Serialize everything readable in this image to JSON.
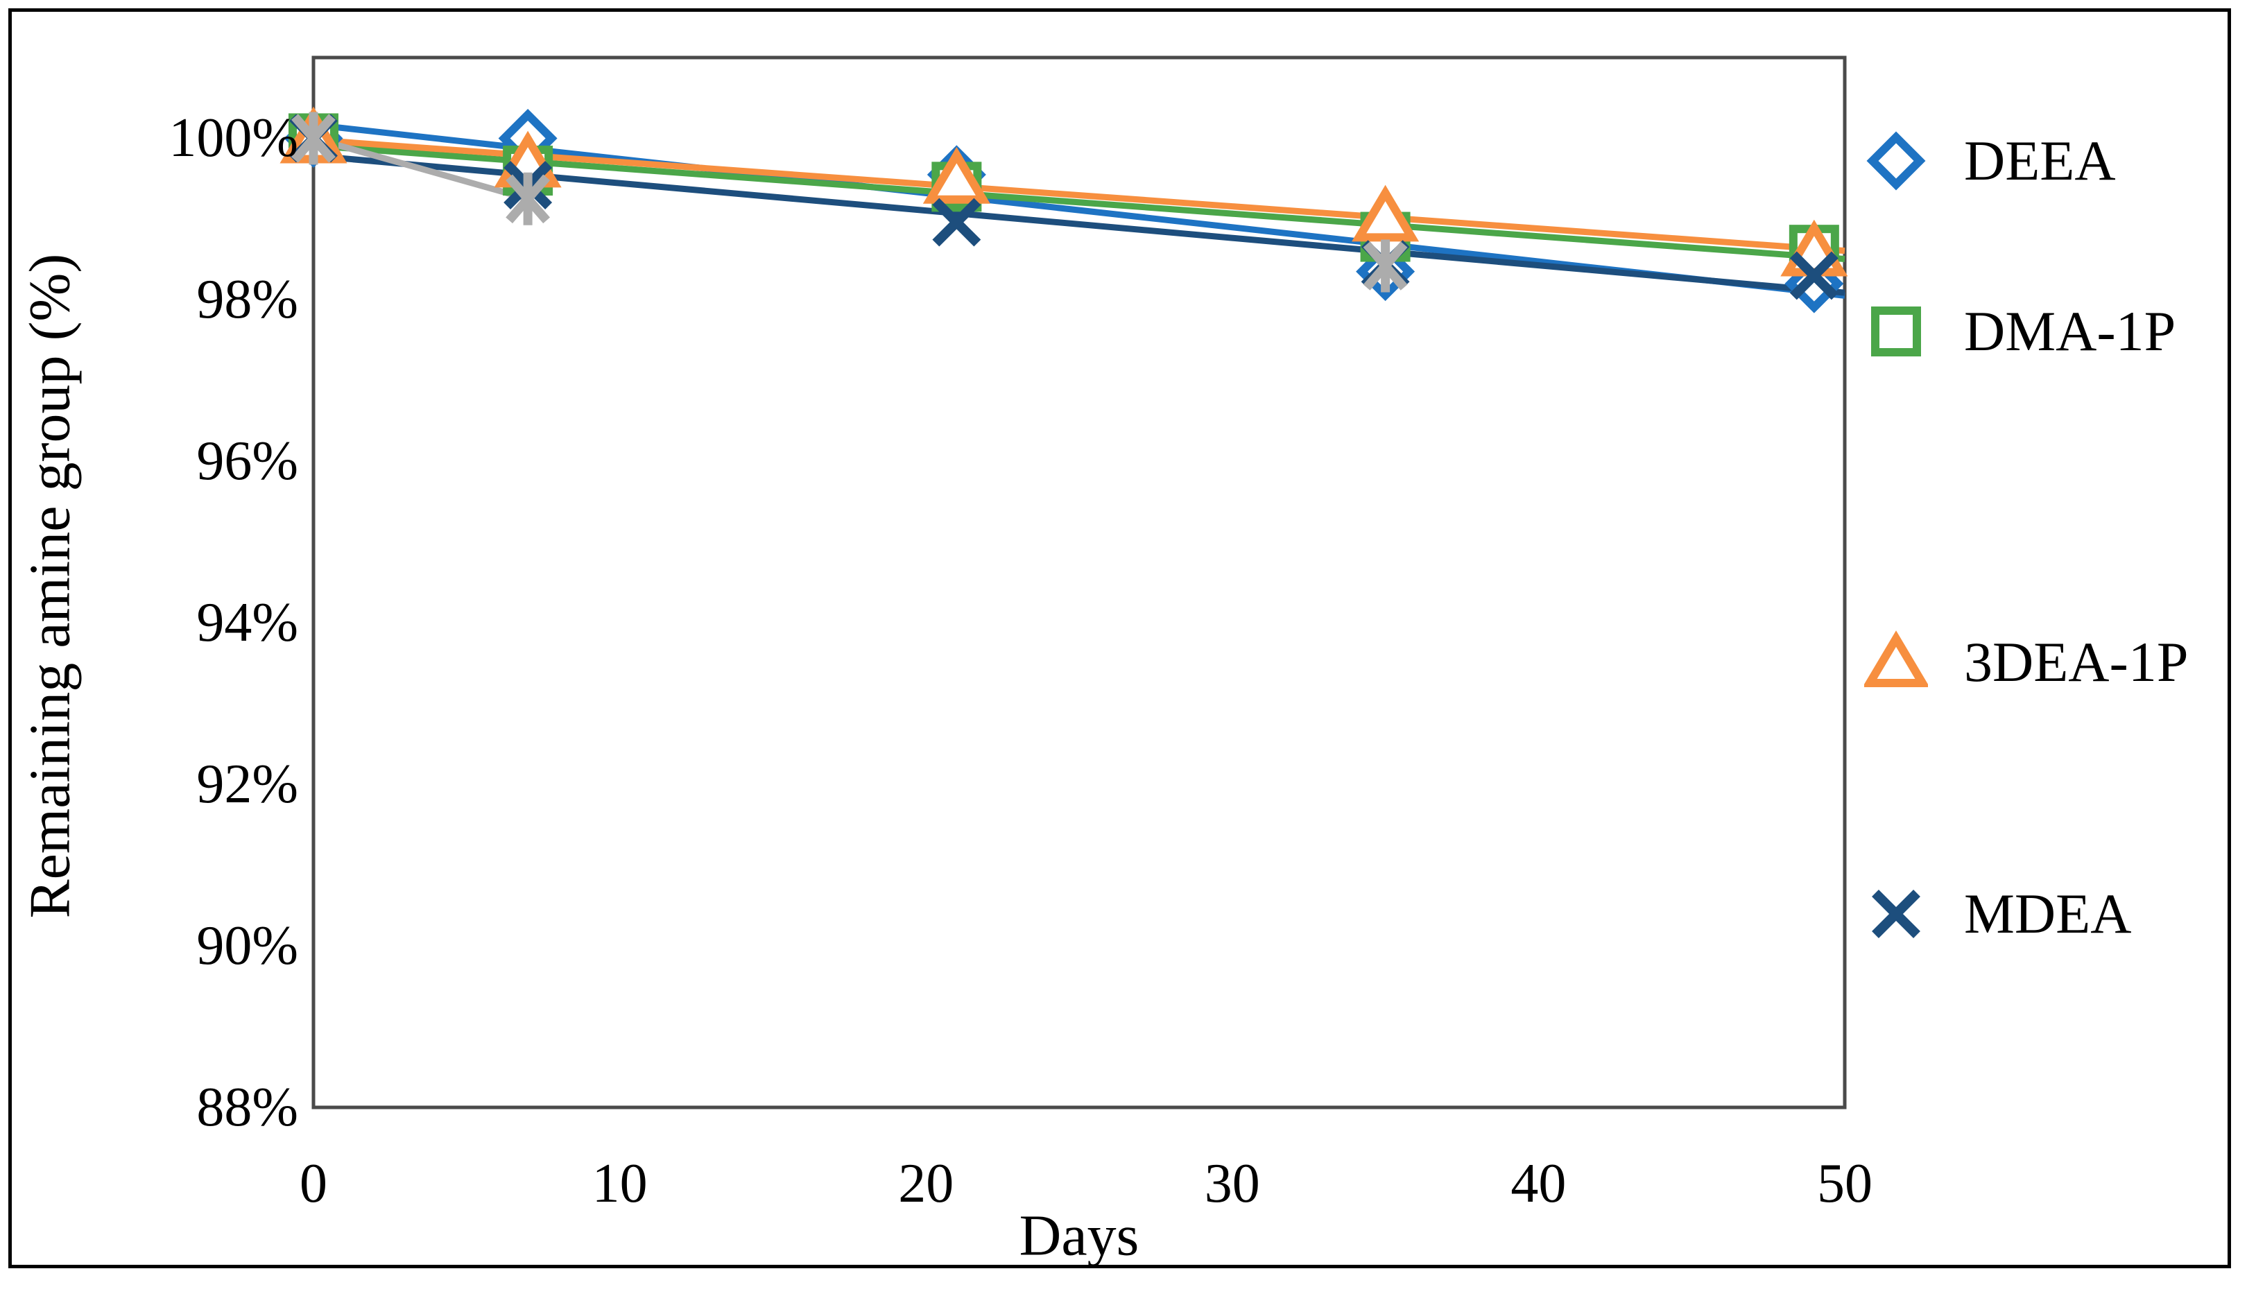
{
  "figure": {
    "background": "#ffffff",
    "outer_border_color": "#000000",
    "plot_border_color": "#4a4a4a"
  },
  "chart_data": {
    "type": "scatter",
    "title": "",
    "xlabel": "Days",
    "ylabel": "Remaining amine group (%)",
    "xlim": [
      0,
      50
    ],
    "ylim": [
      88,
      101
    ],
    "grid": false,
    "legend_position": "right",
    "x_ticks": [
      0,
      10,
      20,
      30,
      40,
      50
    ],
    "y_ticks": [
      {
        "value": 100,
        "label": "100%"
      },
      {
        "value": 98,
        "label": "98%"
      },
      {
        "value": 96,
        "label": "96%"
      },
      {
        "value": 94,
        "label": "94%"
      },
      {
        "value": 92,
        "label": "92%"
      },
      {
        "value": 90,
        "label": "90%"
      },
      {
        "value": 88,
        "label": "88%"
      }
    ],
    "x_unit": "days",
    "series": [
      {
        "name": "DEEA",
        "color": "#1E73C3",
        "marker": "diamond",
        "in_legend": true,
        "x": [
          0,
          7,
          21,
          35,
          49
        ],
        "y": [
          100,
          100,
          99.55,
          98.35,
          98.2
        ],
        "trendline": {
          "type": "linear",
          "x_range": [
            0,
            50
          ]
        }
      },
      {
        "name": "DMA-1P",
        "color": "#4BA649",
        "marker": "square",
        "in_legend": true,
        "x": [
          0,
          7,
          21,
          35,
          49
        ],
        "y": [
          100,
          99.6,
          99.4,
          98.78,
          98.62
        ],
        "trendline": {
          "type": "linear",
          "x_range": [
            0,
            50
          ]
        }
      },
      {
        "name": "3DEA-1P",
        "color": "#F78F3F",
        "marker": "triangle",
        "in_legend": true,
        "x": [
          0,
          7,
          21,
          35,
          49
        ],
        "y": [
          100,
          99.7,
          99.5,
          99.03,
          98.6
        ],
        "trendline": {
          "type": "linear",
          "x_range": [
            0,
            50
          ]
        }
      },
      {
        "name": "MDEA",
        "color": "#1D4E7D",
        "marker": "x",
        "in_legend": true,
        "x": [
          0,
          7,
          21,
          35,
          49
        ],
        "y": [
          100,
          99.42,
          98.96,
          98.44,
          98.3
        ],
        "trendline": {
          "type": "linear",
          "x_range": [
            0,
            50
          ]
        }
      },
      {
        "name": "",
        "color": "#ACACAC",
        "marker": "star",
        "in_legend": false,
        "x": [
          0,
          7,
          35
        ],
        "y": [
          100,
          99.25,
          98.42
        ],
        "trendline": null,
        "connector": [
          [
            0,
            100
          ],
          [
            7,
            99.25
          ]
        ]
      }
    ]
  },
  "legend": {
    "rows": [
      {
        "label": "DEEA",
        "center_y": 232
      },
      {
        "label": "DMA-1P",
        "center_y": 478
      },
      {
        "label": "3DEA-1P",
        "center_y": 955
      },
      {
        "label": "MDEA",
        "center_y": 1318
      }
    ]
  }
}
